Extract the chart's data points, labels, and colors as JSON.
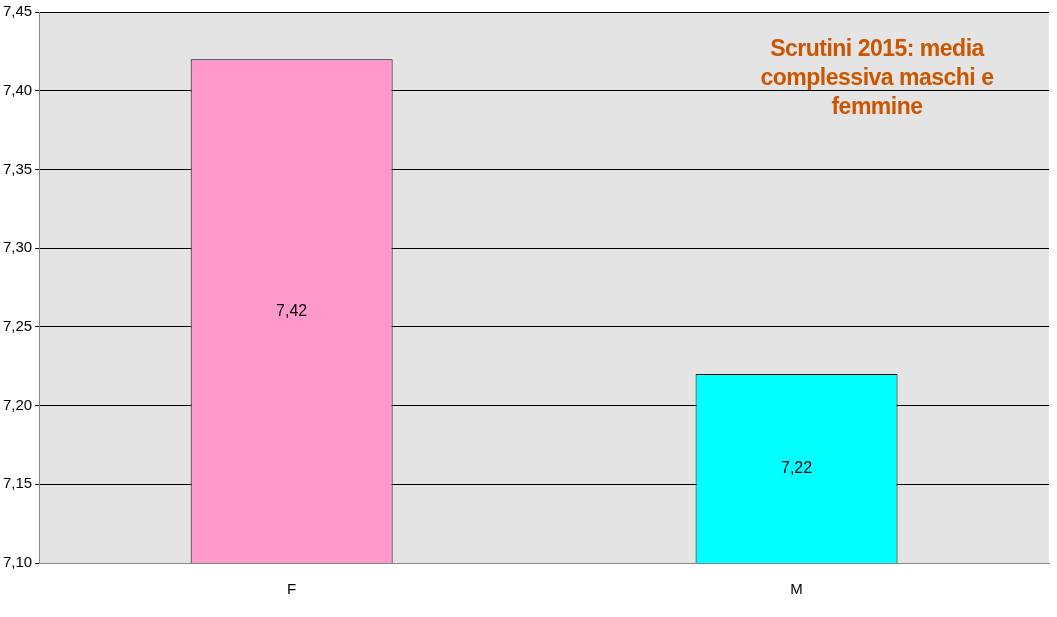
{
  "chart_data": {
    "type": "bar",
    "title": "Scrutini 2015: media complessiva maschi e femmine",
    "categories": [
      "F",
      "M"
    ],
    "values": [
      7.42,
      7.22
    ],
    "colors": [
      "#ff99cc",
      "#00ffff"
    ],
    "value_labels": [
      "7,42",
      "7,22"
    ],
    "ylim": [
      7.1,
      7.45
    ],
    "yticks": [
      {
        "value": 7.1,
        "label": "7,10"
      },
      {
        "value": 7.15,
        "label": "7,15"
      },
      {
        "value": 7.2,
        "label": "7,20"
      },
      {
        "value": 7.25,
        "label": "7,25"
      },
      {
        "value": 7.3,
        "label": "7,30"
      },
      {
        "value": 7.35,
        "label": "7,35"
      },
      {
        "value": 7.4,
        "label": "7,40"
      },
      {
        "value": 7.45,
        "label": "7,45"
      }
    ],
    "grid": "y",
    "legend": false
  }
}
